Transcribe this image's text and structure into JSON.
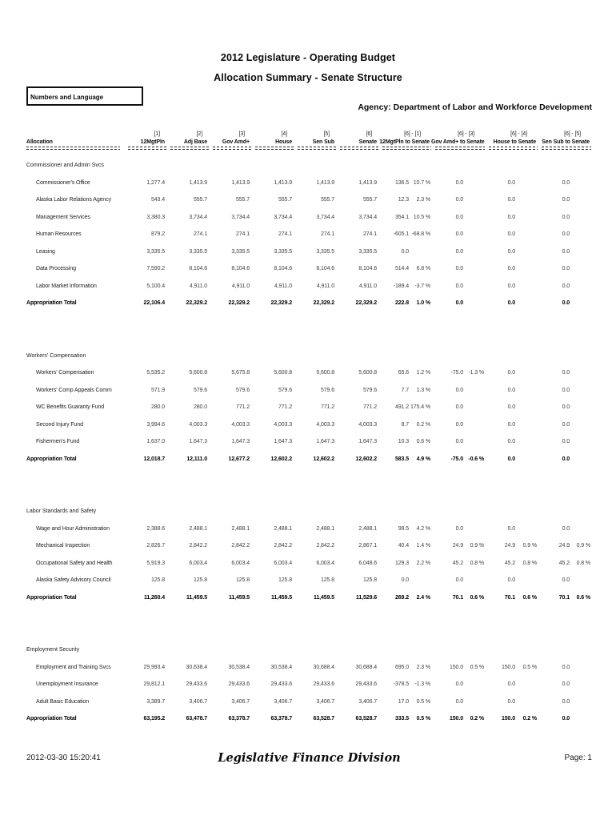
{
  "header": {
    "title_line1": "2012 Legislature - Operating Budget",
    "title_line2": "Allocation Summary - Senate Structure",
    "tag_box": "Numbers and Language",
    "agency": "Agency: Department of Labor and Workforce Development"
  },
  "table": {
    "allocation_label": "Allocation",
    "columns": [
      {
        "num": "[1]",
        "name": "12MgtPln"
      },
      {
        "num": "[2]",
        "name": "Adj Base"
      },
      {
        "num": "[3]",
        "name": "Gov Amd+"
      },
      {
        "num": "[4]",
        "name": "House"
      },
      {
        "num": "[5]",
        "name": "Sen Sub"
      },
      {
        "num": "[6]",
        "name": "Senate"
      }
    ],
    "diff_columns": [
      {
        "num": "[6] - [1]",
        "name": "12MgtPln to Senate"
      },
      {
        "num": "[6] - [3]",
        "name": "Gov Amd+ to Senate"
      },
      {
        "num": "[6] - [4]",
        "name": "House to Senate"
      },
      {
        "num": "[6] - [5]",
        "name": "Sen Sub to Senate"
      }
    ],
    "sections": [
      {
        "name": "Commissioner and Admin Svcs",
        "rows": [
          {
            "label": "Commissioner's Office",
            "values": [
              "1,277.4",
              "1,413.9",
              "1,413.9",
              "1,413.9",
              "1,413.9",
              "1,413.9"
            ],
            "diffs": [
              [
                "136.5",
                "10.7 %"
              ],
              [
                "0.0",
                ""
              ],
              [
                "0.0",
                ""
              ],
              [
                "0.0",
                ""
              ]
            ]
          },
          {
            "label": "Alaska Labor Relations Agency",
            "values": [
              "543.4",
              "555.7",
              "555.7",
              "555.7",
              "555.7",
              "555.7"
            ],
            "diffs": [
              [
                "12.3",
                "2.3 %"
              ],
              [
                "0.0",
                ""
              ],
              [
                "0.0",
                ""
              ],
              [
                "0.0",
                ""
              ]
            ]
          },
          {
            "label": "Management Services",
            "values": [
              "3,380.3",
              "3,734.4",
              "3,734.4",
              "3,734.4",
              "3,734.4",
              "3,734.4"
            ],
            "diffs": [
              [
                "354.1",
                "10.5 %"
              ],
              [
                "0.0",
                ""
              ],
              [
                "0.0",
                ""
              ],
              [
                "0.0",
                ""
              ]
            ]
          },
          {
            "label": "Human Resources",
            "values": [
              "879.2",
              "274.1",
              "274.1",
              "274.1",
              "274.1",
              "274.1"
            ],
            "diffs": [
              [
                "-605.1",
                "-68.8 %"
              ],
              [
                "0.0",
                ""
              ],
              [
                "0.0",
                ""
              ],
              [
                "0.0",
                ""
              ]
            ]
          },
          {
            "label": "Leasing",
            "values": [
              "3,335.5",
              "3,335.5",
              "3,335.5",
              "3,335.5",
              "3,335.5",
              "3,335.5"
            ],
            "diffs": [
              [
                "0.0",
                ""
              ],
              [
                "0.0",
                ""
              ],
              [
                "0.0",
                ""
              ],
              [
                "0.0",
                ""
              ]
            ]
          },
          {
            "label": "Data Processing",
            "values": [
              "7,590.2",
              "8,104.6",
              "8,104.6",
              "8,104.6",
              "8,104.6",
              "8,104.6"
            ],
            "diffs": [
              [
                "514.4",
                "6.8 %"
              ],
              [
                "0.0",
                ""
              ],
              [
                "0.0",
                ""
              ],
              [
                "0.0",
                ""
              ]
            ]
          },
          {
            "label": "Labor Market Information",
            "values": [
              "5,100.4",
              "4,911.0",
              "4,911.0",
              "4,911.0",
              "4,911.0",
              "4,911.0"
            ],
            "diffs": [
              [
                "-189.4",
                "-3.7 %"
              ],
              [
                "0.0",
                ""
              ],
              [
                "0.0",
                ""
              ],
              [
                "0.0",
                ""
              ]
            ]
          }
        ],
        "total": {
          "label": "Appropriation Total",
          "values": [
            "22,106.4",
            "22,329.2",
            "22,329.2",
            "22,329.2",
            "22,329.2",
            "22,329.2"
          ],
          "diffs": [
            [
              "222.8",
              "1.0 %"
            ],
            [
              "0.0",
              ""
            ],
            [
              "0.0",
              ""
            ],
            [
              "0.0",
              ""
            ]
          ]
        }
      },
      {
        "name": "Workers' Compensation",
        "rows": [
          {
            "label": "Workers' Compensation",
            "values": [
              "5,535.2",
              "5,600.8",
              "5,675.8",
              "5,600.8",
              "5,600.8",
              "5,600.8"
            ],
            "diffs": [
              [
                "65.6",
                "1.2 %"
              ],
              [
                "-75.0",
                "-1.3 %"
              ],
              [
                "0.0",
                ""
              ],
              [
                "0.0",
                ""
              ]
            ]
          },
          {
            "label": "Workers' Comp Appeals Comm",
            "values": [
              "571.9",
              "579.6",
              "579.6",
              "579.6",
              "579.6",
              "579.6"
            ],
            "diffs": [
              [
                "7.7",
                "1.3 %"
              ],
              [
                "0.0",
                ""
              ],
              [
                "0.0",
                ""
              ],
              [
                "0.0",
                ""
              ]
            ]
          },
          {
            "label": "WC Benefits Guaranty Fund",
            "values": [
              "280.0",
              "280.0",
              "771.2",
              "771.2",
              "771.2",
              "771.2"
            ],
            "diffs": [
              [
                "491.2",
                "175.4 %"
              ],
              [
                "0.0",
                ""
              ],
              [
                "0.0",
                ""
              ],
              [
                "0.0",
                ""
              ]
            ]
          },
          {
            "label": "Second Injury Fund",
            "values": [
              "3,994.6",
              "4,003.3",
              "4,003.3",
              "4,003.3",
              "4,003.3",
              "4,003.3"
            ],
            "diffs": [
              [
                "8.7",
                "0.2 %"
              ],
              [
                "0.0",
                ""
              ],
              [
                "0.0",
                ""
              ],
              [
                "0.0",
                ""
              ]
            ]
          },
          {
            "label": "Fishermen's Fund",
            "values": [
              "1,637.0",
              "1,647.3",
              "1,647.3",
              "1,647.3",
              "1,647.3",
              "1,647.3"
            ],
            "diffs": [
              [
                "10.3",
                "0.6 %"
              ],
              [
                "0.0",
                ""
              ],
              [
                "0.0",
                ""
              ],
              [
                "0.0",
                ""
              ]
            ]
          }
        ],
        "total": {
          "label": "Appropriation Total",
          "values": [
            "12,018.7",
            "12,111.0",
            "12,677.2",
            "12,602.2",
            "12,602.2",
            "12,602.2"
          ],
          "diffs": [
            [
              "583.5",
              "4.9 %"
            ],
            [
              "-75.0",
              "-0.6 %"
            ],
            [
              "0.0",
              ""
            ],
            [
              "0.0",
              ""
            ]
          ]
        }
      },
      {
        "name": "Labor Standards and Safety",
        "rows": [
          {
            "label": "Wage and Hour Administration",
            "values": [
              "2,388.6",
              "2,488.1",
              "2,488.1",
              "2,488.1",
              "2,488.1",
              "2,488.1"
            ],
            "diffs": [
              [
                "99.5",
                "4.2 %"
              ],
              [
                "0.0",
                ""
              ],
              [
                "0.0",
                ""
              ],
              [
                "0.0",
                ""
              ]
            ]
          },
          {
            "label": "Mechanical Inspection",
            "values": [
              "2,826.7",
              "2,842.2",
              "2,842.2",
              "2,842.2",
              "2,842.2",
              "2,867.1"
            ],
            "diffs": [
              [
                "40.4",
                "1.4 %"
              ],
              [
                "24.9",
                "0.9 %"
              ],
              [
                "24.9",
                "0.9 %"
              ],
              [
                "24.9",
                "0.9 %"
              ]
            ]
          },
          {
            "label": "Occupational Safety and Health",
            "values": [
              "5,919.3",
              "6,003.4",
              "6,003.4",
              "6,003.4",
              "6,003.4",
              "6,048.6"
            ],
            "diffs": [
              [
                "129.3",
                "2.2 %"
              ],
              [
                "45.2",
                "0.8 %"
              ],
              [
                "45.2",
                "0.8 %"
              ],
              [
                "45.2",
                "0.8 %"
              ]
            ]
          },
          {
            "label": "Alaska Safety Advisory Council",
            "values": [
              "125.8",
              "125.8",
              "125.8",
              "125.8",
              "125.8",
              "125.8"
            ],
            "diffs": [
              [
                "0.0",
                ""
              ],
              [
                "0.0",
                ""
              ],
              [
                "0.0",
                ""
              ],
              [
                "0.0",
                ""
              ]
            ]
          }
        ],
        "total": {
          "label": "Appropriation Total",
          "values": [
            "11,260.4",
            "11,459.5",
            "11,459.5",
            "11,459.5",
            "11,459.5",
            "11,529.6"
          ],
          "diffs": [
            [
              "269.2",
              "2.4 %"
            ],
            [
              "70.1",
              "0.6 %"
            ],
            [
              "70.1",
              "0.6 %"
            ],
            [
              "70.1",
              "0.6 %"
            ]
          ]
        }
      },
      {
        "name": "Employment Security",
        "rows": [
          {
            "label": "Employment and Training Svcs",
            "values": [
              "29,993.4",
              "30,638.4",
              "30,538.4",
              "30,538.4",
              "30,688.4",
              "30,688.4"
            ],
            "diffs": [
              [
                "695.0",
                "2.3 %"
              ],
              [
                "150.0",
                "0.5 %"
              ],
              [
                "150.0",
                "0.5 %"
              ],
              [
                "0.0",
                ""
              ]
            ]
          },
          {
            "label": "Unemployment Insurance",
            "values": [
              "29,812.1",
              "29,433.6",
              "29,433.6",
              "29,433.6",
              "29,433.6",
              "29,433.6"
            ],
            "diffs": [
              [
                "-378.5",
                "-1.3 %"
              ],
              [
                "0.0",
                ""
              ],
              [
                "0.0",
                ""
              ],
              [
                "0.0",
                ""
              ]
            ]
          },
          {
            "label": "Adult Basic Education",
            "values": [
              "3,389.7",
              "3,406.7",
              "3,406.7",
              "3,406.7",
              "3,406.7",
              "3,406.7"
            ],
            "diffs": [
              [
                "17.0",
                "0.5 %"
              ],
              [
                "0.0",
                ""
              ],
              [
                "0.0",
                ""
              ],
              [
                "0.0",
                ""
              ]
            ]
          }
        ],
        "total": {
          "label": "Appropriation Total",
          "values": [
            "63,195.2",
            "63,478.7",
            "63,378.7",
            "63,378.7",
            "63,528.7",
            "63,528.7"
          ],
          "diffs": [
            [
              "333.5",
              "0.5 %"
            ],
            [
              "150.0",
              "0.2 %"
            ],
            [
              "150.0",
              "0.2 %"
            ],
            [
              "0.0",
              ""
            ]
          ]
        }
      }
    ]
  },
  "footer": {
    "timestamp": "2012-03-30 15:20:41",
    "division": "Legislative Finance Division",
    "page": "Page: 1"
  }
}
